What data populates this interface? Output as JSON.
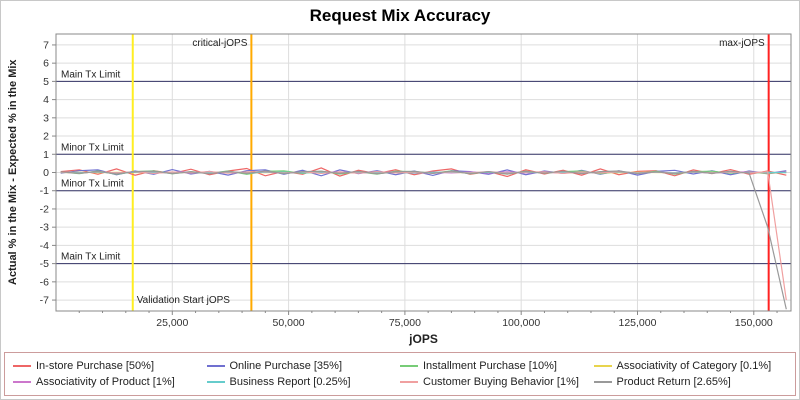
{
  "chart_data": {
    "type": "line",
    "title": "Request Mix Accuracy",
    "xlabel": "jOPS",
    "ylabel": "Actual % in the Mix - Expected % in the Mix",
    "xlim": [
      0,
      158000
    ],
    "ylim": [
      -7.6,
      7.6
    ],
    "grid": true,
    "legend_position": "bottom",
    "y_ticks": [
      -7,
      -6,
      -5,
      -4,
      -3,
      -2,
      -1,
      0,
      1,
      2,
      3,
      4,
      5,
      6,
      7
    ],
    "x_ticks": [
      {
        "value": 25000,
        "label": "25,000"
      },
      {
        "value": 50000,
        "label": "50,000"
      },
      {
        "value": 75000,
        "label": "75,000"
      },
      {
        "value": 100000,
        "label": "100,000"
      },
      {
        "value": 125000,
        "label": "125,000"
      },
      {
        "value": 150000,
        "label": "150,000"
      }
    ],
    "x_minor_tick_step": 5000,
    "limit_lines": [
      {
        "label": "Main Tx Limit",
        "y": 5
      },
      {
        "label": "Minor Tx Limit",
        "y": 1
      },
      {
        "label": "Minor Tx Limit",
        "y": -1
      },
      {
        "label": "Main Tx Limit",
        "y": -5
      }
    ],
    "marker_lines": [
      {
        "label": "Validation Start jOPS",
        "x": 16500,
        "color": "#ffee22",
        "label_anchor": "bottom-right"
      },
      {
        "label": "critical-jOPS",
        "x": 42000,
        "color": "#ffaa00",
        "label_anchor": "top-left"
      },
      {
        "label": "max-jOPS",
        "x": 153200,
        "color": "#ff2222",
        "label_anchor": "top-left"
      }
    ],
    "x": [
      1000,
      5000,
      9000,
      13000,
      17000,
      21000,
      25000,
      29000,
      33000,
      37000,
      41000,
      45000,
      49000,
      53000,
      57000,
      61000,
      65000,
      69000,
      73000,
      77000,
      81000,
      85000,
      89000,
      93000,
      97000,
      101000,
      105000,
      109000,
      113000,
      117000,
      121000,
      125000,
      129000,
      133000,
      137000,
      141000,
      145000,
      149000,
      153000,
      157000
    ],
    "series": [
      {
        "name": "In-store Purchase [50%]",
        "color": "#ee6666",
        "values": [
          0.05,
          0.15,
          -0.1,
          0.2,
          -0.15,
          0.1,
          -0.05,
          0.18,
          -0.12,
          0.08,
          0.22,
          -0.18,
          0.06,
          -0.1,
          0.25,
          -0.2,
          0.12,
          -0.06,
          0.15,
          -0.12,
          0.08,
          0.2,
          -0.1,
          0.05,
          -0.22,
          0.15,
          -0.08,
          0.12,
          -0.15,
          0.2,
          -0.12,
          0.06,
          0.1,
          -0.18,
          0.14,
          -0.06,
          0.16,
          -0.1,
          0.08,
          -0.15
        ]
      },
      {
        "name": "Online Purchase [35%]",
        "color": "#7070d0",
        "values": [
          -0.04,
          0.1,
          0.14,
          -0.12,
          0.08,
          -0.1,
          0.16,
          -0.08,
          0.06,
          -0.14,
          0.1,
          0.15,
          -0.1,
          0.12,
          -0.18,
          0.14,
          -0.06,
          0.1,
          -0.12,
          0.08,
          -0.16,
          0.1,
          0.05,
          -0.1,
          0.14,
          -0.12,
          0.08,
          -0.05,
          0.12,
          -0.1,
          0.1,
          -0.14,
          0.06,
          0.12,
          -0.08,
          0.1,
          -0.12,
          0.08,
          -0.06,
          0.1
        ]
      },
      {
        "name": "Installment Purchase [10%]",
        "color": "#77cc77",
        "values": [
          0.03,
          -0.06,
          0.08,
          -0.1,
          0.05,
          0.09,
          -0.07,
          0.05,
          -0.04,
          0.08,
          -0.1,
          0.06,
          0.09,
          -0.05,
          0.07,
          -0.08,
          0.04,
          -0.09,
          0.07,
          0.05,
          -0.04,
          0.09,
          -0.07,
          0.04,
          -0.09,
          0.07,
          -0.04,
          0.05,
          0.08,
          -0.07,
          0.05,
          -0.04,
          0.07,
          -0.09,
          0.05,
          0.07,
          -0.04,
          0.05,
          -0.07,
          0.04
        ]
      },
      {
        "name": "Associativity of Category [0.1%]",
        "color": "#e8d44d",
        "values": [
          0,
          0.01,
          -0.01,
          0.01,
          0,
          -0.01,
          0.01,
          0,
          -0.01,
          0.01,
          0,
          -0.01,
          0.01,
          -0.01,
          0,
          0.01,
          -0.01,
          0.01,
          0,
          -0.01,
          0.01,
          0,
          -0.01,
          0.01,
          -0.01,
          0,
          0.01,
          -0.01,
          0.01,
          0,
          -0.01,
          0.01,
          0,
          -0.01,
          0.01,
          -0.01,
          0.01,
          0,
          -0.01,
          0
        ]
      },
      {
        "name": "Associativity of Product [1%]",
        "color": "#cc77cc",
        "values": [
          0.02,
          -0.03,
          0.04,
          -0.02,
          0.03,
          -0.04,
          0.02,
          0.03,
          -0.02,
          0.04,
          -0.03,
          0.02,
          -0.04,
          0.03,
          -0.02,
          0.04,
          -0.03,
          0.02,
          0.03,
          -0.04,
          0.02,
          -0.02,
          0.03,
          -0.03,
          0.04,
          -0.02,
          0.02,
          -0.04,
          0.03,
          -0.02,
          0.04,
          -0.03,
          0.02,
          -0.02,
          0.03,
          -0.04,
          0.02,
          0.03,
          -0.02,
          0.02
        ]
      },
      {
        "name": "Business Report [0.25%]",
        "color": "#66cccc",
        "values": [
          0.01,
          -0.01,
          0.02,
          -0.02,
          0.01,
          0.02,
          -0.01,
          0.01,
          -0.02,
          0.02,
          -0.01,
          0.01,
          0.02,
          -0.02,
          0.01,
          -0.01,
          0.02,
          -0.01,
          0.01,
          -0.02,
          0.01,
          0.02,
          -0.01,
          0.01,
          -0.02,
          0.01,
          -0.01,
          0.02,
          -0.01,
          0.01,
          0.02,
          -0.02,
          0.01,
          -0.01,
          0.02,
          -0.01,
          0.01,
          -0.02,
          0.01,
          -0.01
        ]
      },
      {
        "name": "Customer Buying Behavior [1%]",
        "color": "#f0a0a0",
        "values": [
          0.02,
          -0.04,
          0.05,
          -0.03,
          0.04,
          -0.05,
          0.03,
          -0.02,
          0.05,
          -0.04,
          0.03,
          0.05,
          -0.03,
          0.04,
          -0.05,
          0.03,
          -0.04,
          0.05,
          -0.02,
          0.03,
          -0.05,
          0.04,
          -0.03,
          0.05,
          -0.04,
          0.02,
          0.04,
          -0.05,
          0.03,
          -0.02,
          0.05,
          -0.04,
          0.03,
          -0.05,
          0.04,
          -0.02,
          0.03,
          -0.04,
          0.05,
          -7.0
        ]
      },
      {
        "name": "Product Return [2.65%]",
        "color": "#999999",
        "values": [
          0.04,
          -0.05,
          0.06,
          -0.08,
          0.05,
          0.07,
          -0.06,
          0.04,
          -0.07,
          0.06,
          -0.05,
          0.08,
          -0.06,
          0.05,
          0.07,
          -0.05,
          0.06,
          -0.07,
          0.04,
          0.06,
          -0.05,
          0.07,
          -0.06,
          0.05,
          -0.08,
          0.06,
          -0.04,
          0.07,
          -0.06,
          0.05,
          0.08,
          -0.06,
          0.04,
          -0.07,
          0.06,
          -0.05,
          0.07,
          -0.04,
          -3.0,
          -7.5
        ]
      }
    ]
  },
  "colors": {
    "background": "#ffffff",
    "grid": "#dddddd",
    "axis": "#888888",
    "tick_label": "#333333",
    "limit_line": "#333366",
    "annotation_text": "#222222",
    "legend_border": "#cc9c9c"
  }
}
